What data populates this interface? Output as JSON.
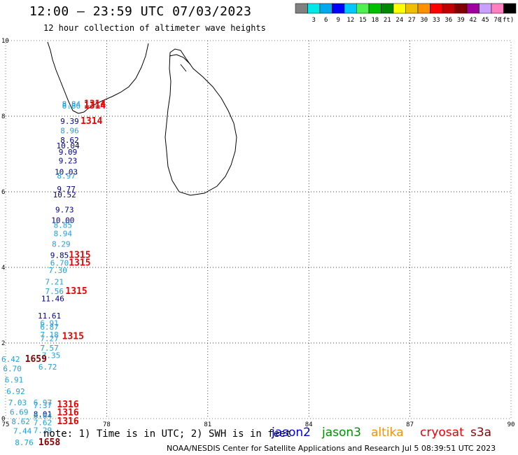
{
  "header": {
    "title": "12:00 – 23:59 UTC 07/03/2023",
    "subtitle": "12 hour collection of altimeter wave heights"
  },
  "colorbar": {
    "unit": "(ft)",
    "bins": [
      {
        "color": "#808080",
        "label": ""
      },
      {
        "color": "#00e8e8",
        "label": "3"
      },
      {
        "color": "#00a8f0",
        "label": "6"
      },
      {
        "color": "#0000ff",
        "label": "9"
      },
      {
        "color": "#00c8ff",
        "label": "12"
      },
      {
        "color": "#50f050",
        "label": "15"
      },
      {
        "color": "#00c000",
        "label": "18"
      },
      {
        "color": "#008800",
        "label": "21"
      },
      {
        "color": "#ffff00",
        "label": "24"
      },
      {
        "color": "#f0c000",
        "label": "27"
      },
      {
        "color": "#ff9000",
        "label": "30"
      },
      {
        "color": "#ff0000",
        "label": "33"
      },
      {
        "color": "#c00000",
        "label": "36"
      },
      {
        "color": "#800000",
        "label": "39"
      },
      {
        "color": "#a000a0",
        "label": "42"
      },
      {
        "color": "#c8a0ff",
        "label": "45"
      },
      {
        "color": "#ff80c0",
        "label": "70"
      },
      {
        "color": "#000000",
        "label": ""
      }
    ]
  },
  "axes": {
    "x_ticks": [
      "75",
      "78",
      "81",
      "84",
      "87",
      "90"
    ],
    "y_ticks": [
      "0",
      "2",
      "4",
      "6",
      "8",
      "10"
    ]
  },
  "observations": [
    {
      "text": "8.84",
      "lon": 76.95,
      "lat": 8.25,
      "color": "#20a0e0"
    },
    {
      "text": "8.86",
      "lon": 76.95,
      "lat": 8.2,
      "color": "#20a0e0"
    },
    {
      "text": "1314",
      "lon": 77.65,
      "lat": 8.25,
      "color": "#ee0000"
    },
    {
      "text": "1314",
      "lon": 77.65,
      "lat": 8.2,
      "color": "#ee0000"
    },
    {
      "text": "9.39",
      "lon": 76.9,
      "lat": 7.8,
      "color": "#00008b"
    },
    {
      "text": "1314",
      "lon": 77.55,
      "lat": 7.8,
      "color": "#ee0000"
    },
    {
      "text": "8.96",
      "lon": 76.9,
      "lat": 7.55,
      "color": "#20a0e0"
    },
    {
      "text": "8.62",
      "lon": 76.9,
      "lat": 7.3,
      "color": "#00008b"
    },
    {
      "text": "10.04",
      "lon": 76.85,
      "lat": 7.15,
      "color": "#00008b"
    },
    {
      "text": "9.09",
      "lon": 76.85,
      "lat": 6.98,
      "color": "#00008b"
    },
    {
      "text": "9.23",
      "lon": 76.85,
      "lat": 6.75,
      "color": "#00008b"
    },
    {
      "text": "10.03",
      "lon": 76.8,
      "lat": 6.45,
      "color": "#00008b"
    },
    {
      "text": "8.97",
      "lon": 76.8,
      "lat": 6.35,
      "color": "#20a0e0"
    },
    {
      "text": "9.77",
      "lon": 76.8,
      "lat": 6.0,
      "color": "#00008b"
    },
    {
      "text": "10.52",
      "lon": 76.75,
      "lat": 5.85,
      "color": "#00008b"
    },
    {
      "text": "9.73",
      "lon": 76.75,
      "lat": 5.45,
      "color": "#00008b"
    },
    {
      "text": "10.00",
      "lon": 76.7,
      "lat": 5.18,
      "color": "#00008b"
    },
    {
      "text": "8.85",
      "lon": 76.7,
      "lat": 5.05,
      "color": "#20a0e0"
    },
    {
      "text": "8.94",
      "lon": 76.7,
      "lat": 4.82,
      "color": "#20a0e0"
    },
    {
      "text": "8.29",
      "lon": 76.65,
      "lat": 4.55,
      "color": "#20a0e0"
    },
    {
      "text": "9.85",
      "lon": 76.6,
      "lat": 4.25,
      "color": "#00008b"
    },
    {
      "text": "1315",
      "lon": 77.2,
      "lat": 4.25,
      "color": "#ee0000"
    },
    {
      "text": "6.70",
      "lon": 76.6,
      "lat": 4.05,
      "color": "#20a0e0"
    },
    {
      "text": "1315",
      "lon": 77.2,
      "lat": 4.05,
      "color": "#ee0000"
    },
    {
      "text": "7.30",
      "lon": 76.55,
      "lat": 3.85,
      "color": "#20a0e0"
    },
    {
      "text": "7.21",
      "lon": 76.45,
      "lat": 3.55,
      "color": "#20a0e0"
    },
    {
      "text": "7.56",
      "lon": 76.45,
      "lat": 3.3,
      "color": "#20a0e0"
    },
    {
      "text": "1315",
      "lon": 77.1,
      "lat": 3.3,
      "color": "#ee0000"
    },
    {
      "text": "11.46",
      "lon": 76.4,
      "lat": 3.1,
      "color": "#00008b"
    },
    {
      "text": "11.61",
      "lon": 76.3,
      "lat": 2.65,
      "color": "#00008b"
    },
    {
      "text": "6.91",
      "lon": 76.3,
      "lat": 2.45,
      "color": "#20a0e0"
    },
    {
      "text": "6.87",
      "lon": 76.3,
      "lat": 2.35,
      "color": "#20a0e0"
    },
    {
      "text": "7.18",
      "lon": 76.3,
      "lat": 2.15,
      "color": "#20a0e0"
    },
    {
      "text": "7.27",
      "lon": 76.3,
      "lat": 2.05,
      "color": "#20a0e0"
    },
    {
      "text": "1315",
      "lon": 77.0,
      "lat": 2.1,
      "color": "#ee0000"
    },
    {
      "text": "7.57",
      "lon": 76.3,
      "lat": 1.8,
      "color": "#20a0e0"
    },
    {
      "text": "7.35",
      "lon": 76.35,
      "lat": 1.6,
      "color": "#20a0e0"
    },
    {
      "text": "6.42",
      "lon": 75.15,
      "lat": 1.5,
      "color": "#20a0e0"
    },
    {
      "text": "1659",
      "lon": 75.9,
      "lat": 1.5,
      "color": "#8b0000"
    },
    {
      "text": "6.72",
      "lon": 76.25,
      "lat": 1.3,
      "color": "#20a0e0"
    },
    {
      "text": "6.70",
      "lon": 75.2,
      "lat": 1.25,
      "color": "#20a0e0"
    },
    {
      "text": "6.91",
      "lon": 75.25,
      "lat": 0.95,
      "color": "#20a0e0"
    },
    {
      "text": "6.92",
      "lon": 75.3,
      "lat": 0.65,
      "color": "#20a0e0"
    },
    {
      "text": "7.03",
      "lon": 75.35,
      "lat": 0.35,
      "color": "#20a0e0"
    },
    {
      "text": "6.97",
      "lon": 76.1,
      "lat": 0.35,
      "color": "#20a0e0"
    },
    {
      "text": "7.37",
      "lon": 76.1,
      "lat": 0.28,
      "color": "#20a0e0"
    },
    {
      "text": "1316",
      "lon": 76.85,
      "lat": 0.3,
      "color": "#ee0000"
    },
    {
      "text": "6.69",
      "lon": 75.4,
      "lat": 0.1,
      "color": "#20a0e0"
    },
    {
      "text": "8.01",
      "lon": 76.1,
      "lat": 0.05,
      "color": "#00008b"
    },
    {
      "text": "8.04",
      "lon": 76.1,
      "lat": 0.0,
      "color": "#20a0e0"
    },
    {
      "text": "1316",
      "lon": 76.85,
      "lat": 0.08,
      "color": "#ee0000"
    },
    {
      "text": "8.62",
      "lon": 75.45,
      "lat": -0.15,
      "color": "#20a0e0"
    },
    {
      "text": "7.62",
      "lon": 76.1,
      "lat": -0.18,
      "color": "#20a0e0"
    },
    {
      "text": "1316",
      "lon": 76.85,
      "lat": -0.15,
      "color": "#ee0000"
    },
    {
      "text": "7.29",
      "lon": 76.1,
      "lat": -0.38,
      "color": "#20a0e0"
    },
    {
      "text": "7.44",
      "lon": 75.5,
      "lat": -0.4,
      "color": "#20a0e0"
    },
    {
      "text": "8.76",
      "lon": 75.55,
      "lat": -0.7,
      "color": "#20a0e0"
    },
    {
      "text": "1658",
      "lon": 76.3,
      "lat": -0.7,
      "color": "#8b0000"
    }
  ],
  "footer": {
    "note": "note:  1) Time is in UTC; 2) SWH is in feet",
    "credit": "NOAA/NESDIS Center for Satellite Applications and Research   Jul  5 08:39:51 UTC 2023",
    "satellites": [
      {
        "name": "jason2",
        "color": "#0000dd"
      },
      {
        "name": "jason3",
        "color": "#009000"
      },
      {
        "name": "altika",
        "color": "#ff9000"
      },
      {
        "name": "cryosat",
        "color": "#ee0000"
      },
      {
        "name": "s3a",
        "color": "#8b0000"
      }
    ]
  }
}
